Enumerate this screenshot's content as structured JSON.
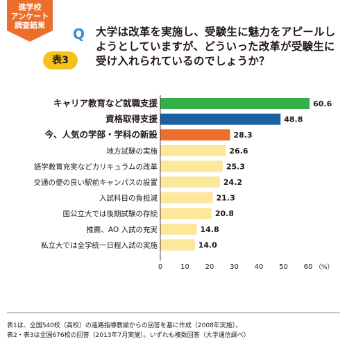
{
  "badge": {
    "lines": [
      "進学校",
      "アンケート",
      "調査結果"
    ]
  },
  "table_label": "表3",
  "question": {
    "mark": "Q",
    "text": "大学は改革を実施し、受験生に魅力をアピールしようとしていますが、どういった改革が受験生に受け入れられているのでしょうか？"
  },
  "colors": {
    "green": "#33b047",
    "blue": "#1d5fa3",
    "orange": "#ec6e2a",
    "yellow": "#fce79b",
    "badge": "#ec6e2a",
    "table": "#f5c21b",
    "q": "#3b8ccb"
  },
  "chart_data": {
    "type": "bar",
    "orientation": "horizontal",
    "categories": [
      "キャリア教育など就職支援",
      "資格取得支援",
      "今、人気の学部・学科の新設",
      "地方試験の実施",
      "語学教育充実などカリキュラムの改革",
      "交通の便の良い駅前キャンパスの設置",
      "入試科目の負担減",
      "国公立大では後期試験の存続",
      "推薦、AO 入試の充実",
      "私立大では全学統一日程入試の実施"
    ],
    "values": [
      60.6,
      48.8,
      28.3,
      26.6,
      25.3,
      24.2,
      21.3,
      20.8,
      14.8,
      14.0
    ],
    "value_labels": [
      "60.6",
      "48.8",
      "28.3",
      "26.6",
      "25.3",
      "24.2",
      "21.3",
      "20.8",
      "14.8",
      "14.0"
    ],
    "bar_colors": [
      "#33b047",
      "#1d5fa3",
      "#ec6e2a",
      "#fce79b",
      "#fce79b",
      "#fce79b",
      "#fce79b",
      "#fce79b",
      "#fce79b",
      "#fce79b"
    ],
    "bold": [
      true,
      true,
      true,
      false,
      false,
      false,
      false,
      false,
      false,
      false
    ],
    "xticks": [
      0,
      10,
      20,
      30,
      40,
      50,
      60
    ],
    "xunit": "（%）",
    "xlim": [
      0,
      60
    ],
    "grid": false
  },
  "footnotes": [
    "表1は、全国540校（高校）の進路指導教諭からの回答を基に作成（2008年実施）。",
    "表2・表3は全国676校の回答（2013年7月実施）。いずれも複数回答（大学通信調べ）"
  ]
}
